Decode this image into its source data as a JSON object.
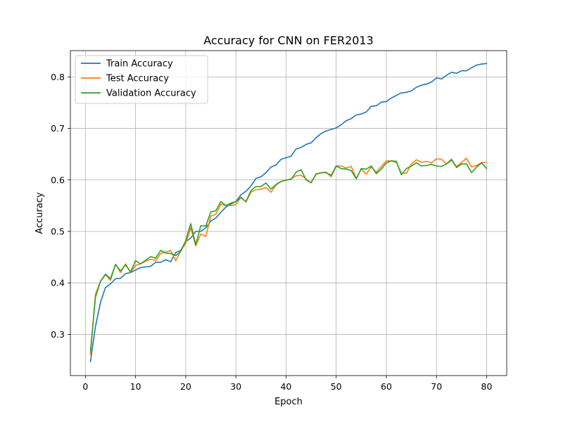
{
  "chart_data": {
    "type": "line",
    "title": "Accuracy for CNN on FER2013",
    "xlabel": "Epoch",
    "ylabel": "Accuracy",
    "xlim": [
      -3,
      84
    ],
    "ylim": [
      0.22,
      0.851
    ],
    "xticks": [
      0,
      10,
      20,
      30,
      40,
      50,
      60,
      70,
      80
    ],
    "yticks": [
      0.3,
      0.4,
      0.5,
      0.6,
      0.7,
      0.8
    ],
    "grid": true,
    "legend_position": "top-left",
    "x": [
      1,
      2,
      3,
      4,
      5,
      6,
      7,
      8,
      9,
      10,
      11,
      12,
      13,
      14,
      15,
      16,
      17,
      18,
      19,
      20,
      21,
      22,
      23,
      24,
      25,
      26,
      27,
      28,
      29,
      30,
      31,
      32,
      33,
      34,
      35,
      36,
      37,
      38,
      39,
      40,
      41,
      42,
      43,
      44,
      45,
      46,
      47,
      48,
      49,
      50,
      51,
      52,
      53,
      54,
      55,
      56,
      57,
      58,
      59,
      60,
      61,
      62,
      63,
      64,
      65,
      66,
      67,
      68,
      69,
      70,
      71,
      72,
      73,
      74,
      75,
      76,
      77,
      78,
      79,
      80
    ],
    "series": [
      {
        "name": "Train Accuracy",
        "color": "#1f77b4",
        "values": [
          0.247,
          0.315,
          0.362,
          0.391,
          0.398,
          0.408,
          0.409,
          0.418,
          0.42,
          0.425,
          0.43,
          0.431,
          0.432,
          0.44,
          0.44,
          0.445,
          0.441,
          0.459,
          0.463,
          0.48,
          0.487,
          0.5,
          0.5,
          0.507,
          0.52,
          0.526,
          0.537,
          0.547,
          0.553,
          0.558,
          0.571,
          0.578,
          0.588,
          0.603,
          0.606,
          0.614,
          0.625,
          0.629,
          0.64,
          0.643,
          0.646,
          0.66,
          0.663,
          0.669,
          0.672,
          0.682,
          0.69,
          0.695,
          0.698,
          0.701,
          0.707,
          0.715,
          0.719,
          0.726,
          0.728,
          0.732,
          0.743,
          0.744,
          0.751,
          0.752,
          0.759,
          0.764,
          0.769,
          0.77,
          0.773,
          0.78,
          0.784,
          0.786,
          0.79,
          0.798,
          0.796,
          0.803,
          0.809,
          0.807,
          0.812,
          0.812,
          0.818,
          0.823,
          0.825,
          0.826
        ]
      },
      {
        "name": "Test Accuracy",
        "color": "#ff7f0e",
        "values": [
          0.26,
          0.378,
          0.403,
          0.416,
          0.405,
          0.436,
          0.42,
          0.437,
          0.42,
          0.434,
          0.437,
          0.442,
          0.446,
          0.443,
          0.457,
          0.46,
          0.463,
          0.443,
          0.462,
          0.477,
          0.507,
          0.472,
          0.495,
          0.49,
          0.53,
          0.533,
          0.553,
          0.55,
          0.55,
          0.552,
          0.567,
          0.557,
          0.576,
          0.581,
          0.582,
          0.585,
          0.576,
          0.59,
          0.597,
          0.599,
          0.602,
          0.608,
          0.609,
          0.602,
          0.594,
          0.612,
          0.614,
          0.615,
          0.606,
          0.627,
          0.627,
          0.623,
          0.626,
          0.603,
          0.621,
          0.611,
          0.625,
          0.615,
          0.626,
          0.637,
          0.637,
          0.634,
          0.613,
          0.613,
          0.631,
          0.639,
          0.634,
          0.636,
          0.633,
          0.641,
          0.64,
          0.631,
          0.638,
          0.626,
          0.634,
          0.642,
          0.625,
          0.628,
          0.634,
          0.634
        ]
      },
      {
        "name": "Validation Accuracy",
        "color": "#2ca02c",
        "values": [
          0.267,
          0.372,
          0.403,
          0.417,
          0.408,
          0.436,
          0.423,
          0.435,
          0.421,
          0.443,
          0.437,
          0.444,
          0.451,
          0.448,
          0.463,
          0.458,
          0.457,
          0.453,
          0.461,
          0.482,
          0.515,
          0.474,
          0.511,
          0.51,
          0.538,
          0.54,
          0.558,
          0.55,
          0.555,
          0.558,
          0.565,
          0.558,
          0.579,
          0.587,
          0.587,
          0.594,
          0.582,
          0.591,
          0.597,
          0.6,
          0.601,
          0.615,
          0.62,
          0.6,
          0.595,
          0.611,
          0.614,
          0.614,
          0.609,
          0.627,
          0.622,
          0.621,
          0.618,
          0.602,
          0.622,
          0.621,
          0.627,
          0.612,
          0.621,
          0.633,
          0.637,
          0.636,
          0.61,
          0.622,
          0.627,
          0.633,
          0.627,
          0.628,
          0.63,
          0.627,
          0.626,
          0.631,
          0.64,
          0.624,
          0.631,
          0.631,
          0.614,
          0.625,
          0.633,
          0.622
        ]
      }
    ]
  }
}
